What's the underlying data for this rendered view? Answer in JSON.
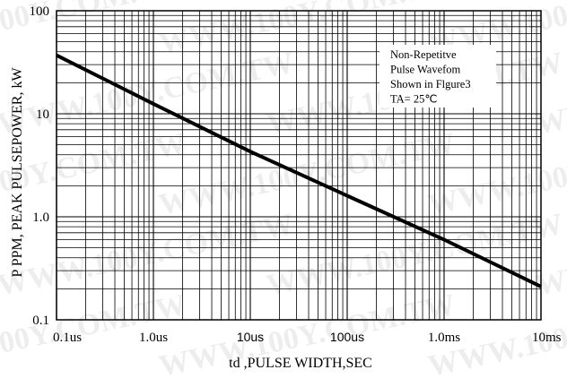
{
  "chart_data": {
    "type": "line",
    "title": "",
    "xlabel": "td ,PULSE WIDTH,SEC",
    "ylabel": "P PPM, PEAK PULSEPOWER, kW",
    "x_scale": "log",
    "y_scale": "log",
    "xlim_seconds": [
      1e-07,
      0.01
    ],
    "ylim_kw": [
      0.1,
      100
    ],
    "x_ticks": [
      {
        "value": 1e-07,
        "label": "0.1us"
      },
      {
        "value": 1e-06,
        "label": "1.0us"
      },
      {
        "value": 1e-05,
        "label": "10us"
      },
      {
        "value": 0.0001,
        "label": "100us"
      },
      {
        "value": 0.001,
        "label": "1.0ms"
      },
      {
        "value": 0.01,
        "label": "10ms"
      }
    ],
    "y_ticks": [
      {
        "value": 100,
        "label": "100"
      },
      {
        "value": 10,
        "label": "10"
      },
      {
        "value": 1,
        "label": "1.0"
      },
      {
        "value": 0.1,
        "label": "0.1"
      }
    ],
    "grid": true,
    "series": [
      {
        "x": [
          1e-07,
          1e-06,
          1e-05,
          0.0001,
          0.001,
          0.01
        ],
        "y": [
          37,
          12.5,
          4.3,
          1.6,
          0.6,
          0.21
        ]
      }
    ],
    "annotation_lines": [
      "Non-Repetitve",
      "Pulse Wavefom",
      "Shown   in Flgure3",
      "TA= 25℃"
    ],
    "annotation_position": "top-right",
    "line_color": "#000000"
  },
  "watermark": "WWW.100Y.COM.TW"
}
